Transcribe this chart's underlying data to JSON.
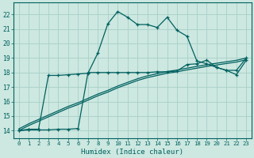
{
  "title": "",
  "xlabel": "Humidex (Indice chaleur)",
  "ylabel": "",
  "bg_color": "#cce8e0",
  "grid_color": "#a8cfc8",
  "line_color": "#006060",
  "xlim": [
    -0.5,
    23.5
  ],
  "ylim": [
    13.5,
    22.8
  ],
  "x_ticks": [
    0,
    1,
    2,
    3,
    4,
    5,
    6,
    7,
    8,
    9,
    10,
    11,
    12,
    13,
    14,
    15,
    16,
    17,
    18,
    19,
    20,
    21,
    22,
    23
  ],
  "y_ticks": [
    14,
    15,
    16,
    17,
    18,
    19,
    20,
    21,
    22
  ],
  "humidex_curve_x": [
    0,
    1,
    2,
    3,
    4,
    5,
    6,
    7,
    8,
    9,
    10,
    11,
    12,
    13,
    14,
    15,
    16,
    17,
    18,
    19,
    20,
    21,
    22,
    23
  ],
  "humidex_curve_y": [
    14.0,
    14.1,
    14.1,
    17.8,
    17.8,
    17.85,
    17.9,
    17.95,
    19.35,
    21.35,
    22.2,
    21.8,
    21.3,
    21.3,
    21.1,
    21.8,
    20.9,
    20.5,
    18.8,
    18.6,
    18.35,
    18.15,
    17.85,
    18.85
  ],
  "flat_curve_x": [
    0,
    1,
    2,
    3,
    4,
    5,
    6,
    7,
    8,
    9,
    10,
    11,
    12,
    13,
    14,
    15,
    16,
    17,
    18,
    19,
    20,
    21,
    22,
    23
  ],
  "flat_curve_y": [
    14.0,
    14.05,
    14.05,
    14.05,
    14.1,
    14.1,
    14.15,
    18.0,
    18.0,
    18.0,
    18.0,
    18.0,
    18.0,
    18.0,
    18.05,
    18.05,
    18.1,
    18.55,
    18.6,
    18.85,
    18.35,
    18.15,
    18.15,
    19.0
  ],
  "diag1_x": [
    0,
    1,
    2,
    3,
    4,
    5,
    6,
    7,
    8,
    9,
    10,
    11,
    12,
    13,
    14,
    15,
    16,
    17,
    18,
    19,
    20,
    21,
    22,
    23
  ],
  "diag1_y": [
    14.0,
    14.35,
    14.65,
    14.95,
    15.25,
    15.55,
    15.8,
    16.1,
    16.4,
    16.65,
    16.95,
    17.2,
    17.45,
    17.65,
    17.8,
    17.95,
    18.05,
    18.18,
    18.3,
    18.42,
    18.52,
    18.62,
    18.72,
    18.88
  ],
  "diag2_y": [
    14.12,
    14.47,
    14.77,
    15.07,
    15.37,
    15.67,
    15.92,
    16.22,
    16.52,
    16.77,
    17.07,
    17.32,
    17.57,
    17.77,
    17.92,
    18.07,
    18.17,
    18.3,
    18.42,
    18.54,
    18.64,
    18.74,
    18.84,
    19.0
  ]
}
